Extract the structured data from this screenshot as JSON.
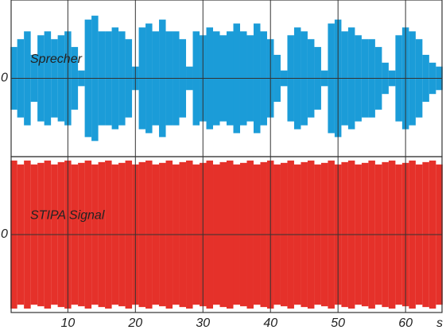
{
  "chart_data": [
    {
      "type": "waveform",
      "xlim": [
        1.6,
        65.4
      ],
      "ylim": [
        -1,
        1
      ],
      "yticks": [
        0
      ],
      "xticks": [
        10,
        20,
        30,
        40,
        50,
        60
      ],
      "show_xtick_labels": false,
      "grid": true,
      "series": [
        {
          "name": "Sprecher",
          "color": "#1b9cd8",
          "x": [
            2,
            3,
            4,
            5,
            6,
            7,
            8,
            9,
            10,
            11,
            12,
            13,
            14,
            15,
            16,
            17,
            18,
            19,
            20,
            21,
            22,
            23,
            24,
            25,
            26,
            27,
            28,
            29,
            30,
            31,
            32,
            33,
            34,
            35,
            36,
            37,
            38,
            39,
            40,
            41,
            42,
            43,
            44,
            45,
            46,
            47,
            48,
            49,
            50,
            51,
            52,
            53,
            54,
            55,
            56,
            57,
            58,
            59,
            60,
            61,
            62,
            63,
            64,
            65
          ],
          "values": [
            0.4,
            0.5,
            0.6,
            0.3,
            0.55,
            0.6,
            0.5,
            0.55,
            0.6,
            0.4,
            0.1,
            0.75,
            0.8,
            0.6,
            0.6,
            0.65,
            0.6,
            0.5,
            0.15,
            0.65,
            0.7,
            0.6,
            0.75,
            0.6,
            0.6,
            0.5,
            0.15,
            0.6,
            0.55,
            0.65,
            0.6,
            0.55,
            0.6,
            0.7,
            0.6,
            0.55,
            0.7,
            0.6,
            0.5,
            0.3,
            0.1,
            0.55,
            0.65,
            0.6,
            0.5,
            0.4,
            0.1,
            0.7,
            0.75,
            0.6,
            0.65,
            0.55,
            0.5,
            0.5,
            0.4,
            0.2,
            0.1,
            0.55,
            0.65,
            0.6,
            0.5,
            0.3,
            0.2,
            0.15
          ]
        }
      ]
    },
    {
      "type": "waveform",
      "xlim": [
        1.6,
        65.4
      ],
      "ylim": [
        -1,
        1
      ],
      "yticks": [
        0
      ],
      "xticks": [
        10,
        20,
        30,
        40,
        50,
        60
      ],
      "show_xtick_labels": true,
      "xlabel": "s",
      "grid": true,
      "series": [
        {
          "name": "STIPA Signal",
          "color": "#e5312a",
          "x": [
            2,
            3,
            4,
            5,
            6,
            7,
            8,
            9,
            10,
            11,
            12,
            13,
            14,
            15,
            16,
            17,
            18,
            19,
            20,
            21,
            22,
            23,
            24,
            25,
            26,
            27,
            28,
            29,
            30,
            31,
            32,
            33,
            34,
            35,
            36,
            37,
            38,
            39,
            40,
            41,
            42,
            43,
            44,
            45,
            46,
            47,
            48,
            49,
            50,
            51,
            52,
            53,
            54,
            55,
            56,
            57,
            58,
            59,
            60,
            61,
            62,
            63,
            64,
            65
          ],
          "values": [
            0.95,
            0.9,
            0.95,
            0.9,
            0.92,
            0.95,
            0.9,
            0.93,
            0.95,
            0.9,
            0.92,
            0.95,
            0.9,
            0.93,
            0.95,
            0.9,
            0.92,
            0.95,
            0.9,
            0.93,
            0.95,
            0.9,
            0.92,
            0.95,
            0.9,
            0.93,
            0.95,
            0.9,
            0.92,
            0.95,
            0.9,
            0.93,
            0.95,
            0.9,
            0.92,
            0.95,
            0.9,
            0.93,
            0.95,
            0.9,
            0.92,
            0.95,
            0.9,
            0.93,
            0.95,
            0.9,
            0.92,
            0.95,
            0.9,
            0.93,
            0.95,
            0.9,
            0.92,
            0.95,
            0.9,
            0.93,
            0.95,
            0.9,
            0.92,
            0.95,
            0.9,
            0.93,
            0.95,
            0.9
          ]
        }
      ]
    }
  ]
}
